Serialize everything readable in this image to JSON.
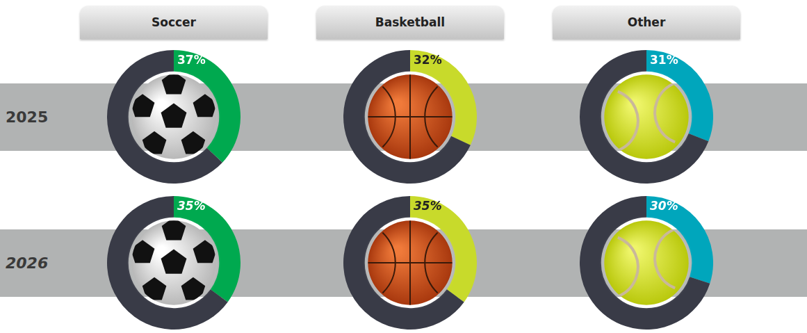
{
  "chart_data": {
    "type": "doughnut",
    "categories": [
      "Soccer",
      "Basketball",
      "Other"
    ],
    "series": [
      {
        "name": "2025",
        "values": [
          37,
          32,
          31
        ],
        "value_labels": [
          "37%",
          "32%",
          "31%"
        ]
      },
      {
        "name": "2026",
        "values": [
          35,
          35,
          30
        ],
        "value_labels": [
          "35%",
          "35%",
          "30%"
        ]
      }
    ],
    "colors": [
      "#00a94f",
      "#c8da2b",
      "#00a6bc"
    ],
    "data_labels": true
  }
}
